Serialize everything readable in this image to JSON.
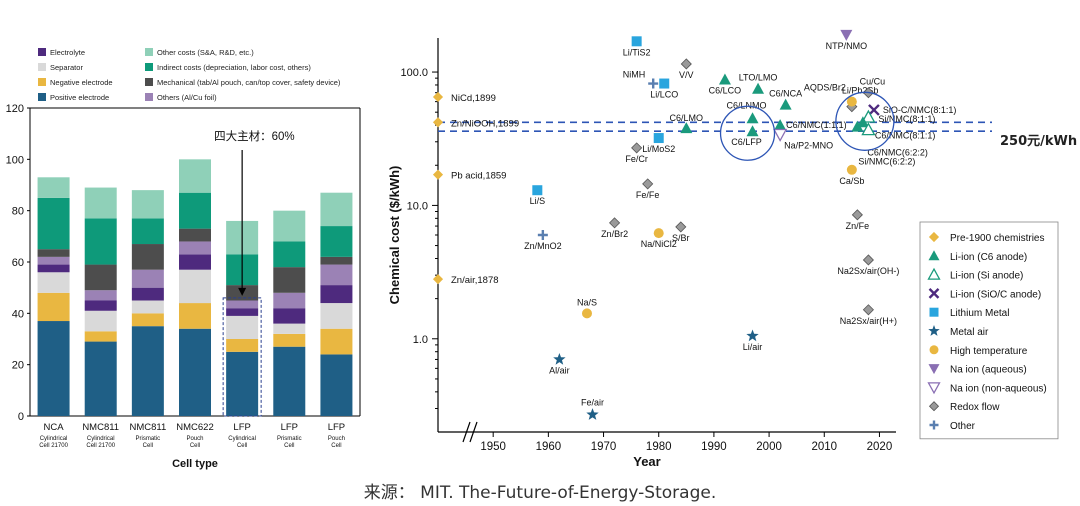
{
  "caption": "来源： MIT. The-Future-of-Energy-Storage.",
  "right_annotation": "250元/kWh",
  "chart_data": [
    {
      "type": "bar",
      "stacked": true,
      "xlabel": "Cell type",
      "ylim": [
        0,
        120
      ],
      "yticks": [
        0,
        20,
        40,
        60,
        80,
        100,
        120
      ],
      "categories": [
        {
          "line1": "NCA",
          "line2": "Cylindrical",
          "line3": "Cell 21700"
        },
        {
          "line1": "NMC811",
          "line2": "Cylindrical",
          "line3": "Cell 21700"
        },
        {
          "line1": "NMC811",
          "line2": "Prismatic",
          "line3": "Cell"
        },
        {
          "line1": "NMC622",
          "line2": "Pouch",
          "line3": "Cell"
        },
        {
          "line1": "LFP",
          "line2": "Cylindrical",
          "line3": "Cell"
        },
        {
          "line1": "LFP",
          "line2": "Prismatic",
          "line3": "Cell"
        },
        {
          "line1": "LFP",
          "line2": "Pouch",
          "line3": "Cell"
        }
      ],
      "series": [
        {
          "name": "Positive electrode",
          "color": "#1f5f86",
          "values": [
            37,
            29,
            35,
            34,
            25,
            27,
            24
          ]
        },
        {
          "name": "Negative electrode",
          "color": "#e9b741",
          "values": [
            11,
            4,
            5,
            10,
            5,
            5,
            10
          ]
        },
        {
          "name": "Separator",
          "color": "#d9d9d9",
          "values": [
            8,
            8,
            5,
            13,
            9,
            4,
            10
          ]
        },
        {
          "name": "Electrolyte",
          "color": "#4e2a7e",
          "values": [
            3,
            4,
            5,
            6,
            3,
            6,
            7
          ]
        },
        {
          "name": "Others (Al/Cu foil)",
          "color": "#9b82b5",
          "values": [
            3,
            4,
            7,
            5,
            3,
            6,
            8
          ]
        },
        {
          "name": "Mechanical (tab/Al pouch, can/top cover, safety device)",
          "color": "#4d4d4d",
          "values": [
            3,
            10,
            10,
            5,
            6,
            10,
            3
          ]
        },
        {
          "name": "Indirect costs (depreciation, labor cost, others)",
          "color": "#0e9a7a",
          "values": [
            20,
            18,
            10,
            14,
            12,
            10,
            12
          ]
        },
        {
          "name": "Other costs (S&A, R&D, etc.)",
          "color": "#8fd0b8",
          "values": [
            8,
            12,
            11,
            13,
            13,
            12,
            13
          ]
        }
      ],
      "highlight_category": 4,
      "annotation": "四大主材：60%"
    },
    {
      "type": "scatter",
      "xlabel": "Year",
      "ylabel": "Chemical cost ($/kWh)",
      "xlim": [
        1950,
        2020
      ],
      "xticks": [
        1950,
        1960,
        1970,
        1980,
        1990,
        2000,
        2010,
        2020
      ],
      "ylim": [
        0.2,
        180
      ],
      "yscale": "log",
      "yticks": [
        {
          "value": 100,
          "label": "100.0"
        },
        {
          "value": 10,
          "label": "10.0"
        },
        {
          "value": 1,
          "label": "1.0"
        }
      ],
      "reference_lines": [
        42,
        36
      ],
      "legend": {
        "position": "right",
        "entries": [
          {
            "name": "Pre-1900 chemistries",
            "marker": "diamond",
            "color": "#e9b741"
          },
          {
            "name": "Li-ion (C6 anode)",
            "marker": "triangle",
            "color": "#1a9a7c"
          },
          {
            "name": "Li-ion (Si anode)",
            "marker": "triangle-open",
            "color": "#1a9a7c"
          },
          {
            "name": "Li-ion (SiO/C anode)",
            "marker": "x",
            "color": "#4e2a7e"
          },
          {
            "name": "Lithium Metal",
            "marker": "square",
            "color": "#29a5de"
          },
          {
            "name": "Metal air",
            "marker": "star",
            "color": "#1f5f86"
          },
          {
            "name": "High temperature",
            "marker": "circle",
            "color": "#e9b741"
          },
          {
            "name": "Na ion (aqueous)",
            "marker": "tri-down",
            "color": "#8a6fb3"
          },
          {
            "name": "Na ion (non-aqueous)",
            "marker": "tri-down-open",
            "color": "#8a6fb3"
          },
          {
            "name": "Redox flow",
            "marker": "diamond",
            "color": "#9a9a9a"
          },
          {
            "name": "Other",
            "marker": "plus",
            "color": "#5a7fb0"
          }
        ]
      },
      "axis_points": [
        {
          "label": "NiCd,1899",
          "y": 65
        },
        {
          "label": "Zn/NiOOH,1899",
          "y": 42
        },
        {
          "label": "Pb acid,1859",
          "y": 17
        },
        {
          "label": "Zn/air,1878",
          "y": 2.8
        }
      ],
      "points": [
        {
          "label": "Li/TiS2",
          "x": 1976,
          "y": 170,
          "group": "Lithium Metal"
        },
        {
          "label": "NiMH",
          "x": 1979,
          "y": 82,
          "group": "Other"
        },
        {
          "label": "Li/LCO",
          "x": 1981,
          "y": 82,
          "group": "Lithium Metal"
        },
        {
          "label": "V/V",
          "x": 1985,
          "y": 115,
          "group": "Redox flow"
        },
        {
          "label": "C6/LCO",
          "x": 1992,
          "y": 88,
          "group": "Li-ion (C6 anode)"
        },
        {
          "label": "LTO/LMO",
          "x": 1998,
          "y": 75,
          "group": "Li-ion (C6 anode)"
        },
        {
          "label": "C6/NCA",
          "x": 2003,
          "y": 57,
          "group": "Li-ion (C6 anode)"
        },
        {
          "label": "C6/LMO",
          "x": 1985,
          "y": 38,
          "group": "Li-ion (C6 anode)"
        },
        {
          "label": "Li/MoS2",
          "x": 1980,
          "y": 32,
          "group": "Lithium Metal"
        },
        {
          "label": "Fe/Cr",
          "x": 1976,
          "y": 27,
          "group": "Redox flow"
        },
        {
          "label": "C6/LNMO",
          "x": 1997,
          "y": 45,
          "group": "Li-ion (C6 anode)"
        },
        {
          "label": "C6/LFP",
          "x": 1997,
          "y": 36,
          "group": "Li-ion (C6 anode)"
        },
        {
          "label": "C6/NMC(1:1:1)",
          "x": 2002,
          "y": 40,
          "group": "Li-ion (C6 anode)"
        },
        {
          "label": "Na/P2-MNO",
          "x": 2002,
          "y": 34,
          "group": "Na ion (non-aqueous)"
        },
        {
          "label": "NTP/NMO",
          "x": 2014,
          "y": 190,
          "group": "Na ion (aqueous)"
        },
        {
          "label": "AQDS/Br2",
          "x": 2015,
          "y": 55,
          "group": "Redox flow"
        },
        {
          "label": "Li/Pb2Sb",
          "x": 2015,
          "y": 60,
          "group": "High temperature"
        },
        {
          "label": "Cu/Cu",
          "x": 2018,
          "y": 70,
          "group": "Redox flow"
        },
        {
          "label": "SiO-C/NMC(8:1:1)",
          "x": 2019,
          "y": 52,
          "group": "Li-ion (SiO/C anode)"
        },
        {
          "label": "Si/NMC(8:1:1)",
          "x": 2018,
          "y": 46,
          "group": "Li-ion (Si anode)"
        },
        {
          "label": "C6/NMC(8:1:1)",
          "x": 2017,
          "y": 42,
          "group": "Li-ion (C6 anode)"
        },
        {
          "label": "C6/NMC(6:2:2)",
          "x": 2016,
          "y": 39,
          "group": "Li-ion (C6 anode)"
        },
        {
          "label": "Si/NMC(6:2:2)",
          "x": 2018,
          "y": 37,
          "group": "Li-ion (Si anode)"
        },
        {
          "label": "Ca/Sb",
          "x": 2015,
          "y": 18.5,
          "group": "High temperature"
        },
        {
          "label": "Fe/Fe",
          "x": 1978,
          "y": 14.5,
          "group": "Redox flow"
        },
        {
          "label": "Li/S",
          "x": 1958,
          "y": 13,
          "group": "Lithium Metal"
        },
        {
          "label": "Zn/Br2",
          "x": 1972,
          "y": 7.4,
          "group": "Redox flow"
        },
        {
          "label": "Na/NiCl2",
          "x": 1980,
          "y": 6.2,
          "group": "High temperature"
        },
        {
          "label": "S/Br",
          "x": 1984,
          "y": 6.9,
          "group": "Redox flow"
        },
        {
          "label": "Zn/MnO2",
          "x": 1959,
          "y": 6.0,
          "group": "Other"
        },
        {
          "label": "Zn/Fe",
          "x": 2016,
          "y": 8.5,
          "group": "Redox flow"
        },
        {
          "label": "Na2Sx/air(OH-)",
          "x": 2018,
          "y": 3.9,
          "group": "Redox flow"
        },
        {
          "label": "Na/S",
          "x": 1967,
          "y": 1.55,
          "group": "High temperature"
        },
        {
          "label": "Na2Sx/air(H+)",
          "x": 2018,
          "y": 1.65,
          "group": "Redox flow"
        },
        {
          "label": "Li/air",
          "x": 1997,
          "y": 1.05,
          "group": "Metal air"
        },
        {
          "label": "Al/air",
          "x": 1962,
          "y": 0.7,
          "group": "Metal air"
        },
        {
          "label": "Fe/air",
          "x": 1968,
          "y": 0.27,
          "group": "Metal air"
        }
      ],
      "circled": [
        "C6/LFP",
        "C6/NMC(8:1:1)"
      ]
    }
  ]
}
